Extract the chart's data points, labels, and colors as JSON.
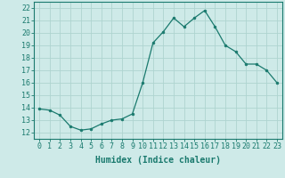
{
  "x": [
    0,
    1,
    2,
    3,
    4,
    5,
    6,
    7,
    8,
    9,
    10,
    11,
    12,
    13,
    14,
    15,
    16,
    17,
    18,
    19,
    20,
    21,
    22,
    23
  ],
  "y": [
    13.9,
    13.8,
    13.4,
    12.5,
    12.2,
    12.3,
    12.7,
    13.0,
    13.1,
    13.5,
    16.0,
    19.2,
    20.1,
    21.2,
    20.5,
    21.2,
    21.8,
    20.5,
    19.0,
    18.5,
    17.5,
    17.5,
    17.0,
    16.0
  ],
  "line_color": "#1a7a6e",
  "marker_color": "#1a7a6e",
  "bg_color": "#ceeae8",
  "grid_color": "#aed4d0",
  "xlabel": "Humidex (Indice chaleur)",
  "ylabel_ticks": [
    12,
    13,
    14,
    15,
    16,
    17,
    18,
    19,
    20,
    21,
    22
  ],
  "ylim": [
    11.5,
    22.5
  ],
  "xlim": [
    -0.5,
    23.5
  ],
  "xlabel_fontsize": 7,
  "tick_fontsize": 6,
  "tick_color": "#1a7a6e",
  "spine_color": "#1a7a6e"
}
